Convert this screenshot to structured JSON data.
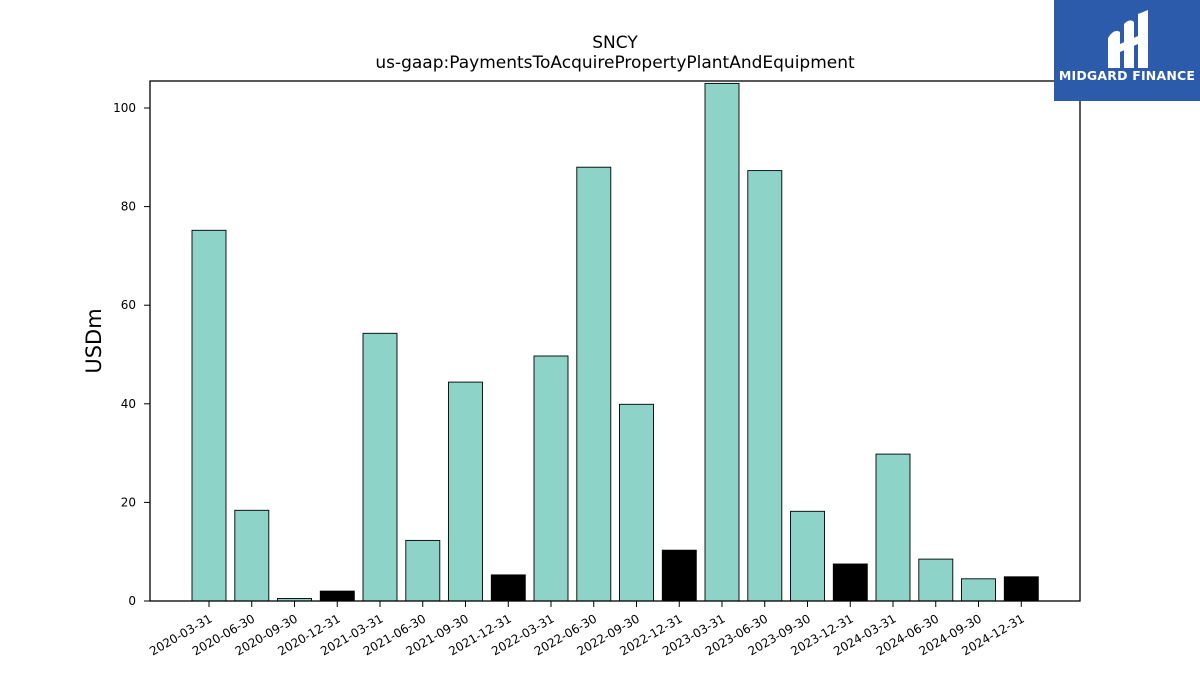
{
  "chart_data": {
    "type": "bar",
    "title": "SNCY",
    "subtitle": "us-gaap:PaymentsToAcquirePropertyPlantAndEquipment",
    "ylabel": "USDm",
    "xlabel": "",
    "ylim": [
      0,
      105.5
    ],
    "yticks": [
      0,
      20,
      40,
      60,
      80,
      100
    ],
    "grid": false,
    "categories": [
      "2020-03-31",
      "2020-06-30",
      "2020-09-30",
      "2020-12-31",
      "2021-03-31",
      "2021-06-30",
      "2021-09-30",
      "2021-12-31",
      "2022-03-31",
      "2022-06-30",
      "2022-09-30",
      "2022-12-31",
      "2023-03-31",
      "2023-06-30",
      "2023-09-30",
      "2023-12-31",
      "2024-03-31",
      "2024-06-30",
      "2024-09-30",
      "2024-12-31"
    ],
    "values": [
      75.2,
      18.4,
      0.5,
      2.0,
      54.3,
      12.3,
      44.4,
      5.3,
      49.7,
      88.0,
      39.9,
      10.3,
      105.0,
      87.3,
      18.2,
      7.5,
      29.8,
      8.5,
      4.5,
      4.9
    ],
    "bar_colors": [
      "#8dd3c7",
      "#8dd3c7",
      "#8dd3c7",
      "#000000",
      "#8dd3c7",
      "#8dd3c7",
      "#8dd3c7",
      "#000000",
      "#8dd3c7",
      "#8dd3c7",
      "#8dd3c7",
      "#000000",
      "#8dd3c7",
      "#8dd3c7",
      "#8dd3c7",
      "#000000",
      "#8dd3c7",
      "#8dd3c7",
      "#8dd3c7",
      "#000000"
    ]
  },
  "logo": {
    "text": "MIDGARD FINANCE",
    "background": "#2d5bab",
    "icon": "midgard-logo-icon"
  }
}
